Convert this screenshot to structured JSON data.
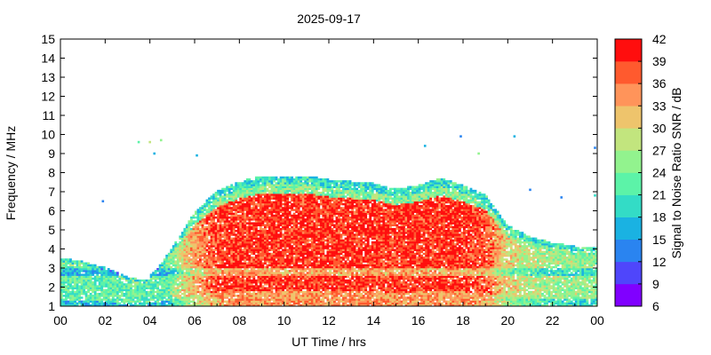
{
  "chart_data": {
    "type": "heatmap",
    "title": "2025-09-17",
    "xlabel": "UT Time / hrs",
    "ylabel": "Frequency / MHz",
    "colorbar_label": "Signal to Noise Ratio SNR / dB",
    "xlim": [
      0,
      24
    ],
    "ylim": [
      1,
      15
    ],
    "x_ticks": [
      "00",
      "02",
      "04",
      "06",
      "08",
      "10",
      "12",
      "14",
      "16",
      "18",
      "20",
      "22",
      "00"
    ],
    "y_ticks": [
      "1",
      "2",
      "3",
      "4",
      "5",
      "6",
      "7",
      "8",
      "9",
      "10",
      "11",
      "12",
      "13",
      "14",
      "15"
    ],
    "colorbar_ticks": [
      "6",
      "9",
      "12",
      "15",
      "18",
      "21",
      "24",
      "27",
      "30",
      "33",
      "36",
      "39",
      "42"
    ],
    "colorbar_range": [
      6,
      42
    ],
    "colorbar_colors": [
      "#8000ff",
      "#4f46fb",
      "#2a84f0",
      "#1ab2e2",
      "#33dcc6",
      "#5cf3a8",
      "#92f38e",
      "#c2e57e",
      "#eec46c",
      "#ff945a",
      "#ff5a2e",
      "#ff0e0e"
    ],
    "band_upper_edge_mhz": [
      {
        "t": 0,
        "f": 3.5
      },
      {
        "t": 1,
        "f": 3.3
      },
      {
        "t": 2,
        "f": 3.0
      },
      {
        "t": 3,
        "f": 2.5
      },
      {
        "t": 3.8,
        "f": 2.3
      },
      {
        "t": 4.5,
        "f": 3.2
      },
      {
        "t": 5.2,
        "f": 4.4
      },
      {
        "t": 6,
        "f": 5.9
      },
      {
        "t": 7,
        "f": 7.0
      },
      {
        "t": 8,
        "f": 7.5
      },
      {
        "t": 9,
        "f": 7.8
      },
      {
        "t": 10,
        "f": 7.8
      },
      {
        "t": 11,
        "f": 7.8
      },
      {
        "t": 12,
        "f": 7.6
      },
      {
        "t": 13,
        "f": 7.5
      },
      {
        "t": 14,
        "f": 7.4
      },
      {
        "t": 15,
        "f": 7.1
      },
      {
        "t": 16,
        "f": 7.3
      },
      {
        "t": 17,
        "f": 7.7
      },
      {
        "t": 18,
        "f": 7.3
      },
      {
        "t": 19,
        "f": 6.8
      },
      {
        "t": 20,
        "f": 5.2
      },
      {
        "t": 21,
        "f": 4.6
      },
      {
        "t": 22,
        "f": 4.3
      },
      {
        "t": 23,
        "f": 4.1
      },
      {
        "t": 24,
        "f": 4.0
      }
    ],
    "scattered_returns": [
      {
        "t": 3.5,
        "f": 9.6,
        "snr": 22
      },
      {
        "t": 4.0,
        "f": 9.6,
        "snr": 27
      },
      {
        "t": 4.5,
        "f": 9.7,
        "snr": 24
      },
      {
        "t": 4.2,
        "f": 9.0,
        "snr": 15
      },
      {
        "t": 6.1,
        "f": 8.9,
        "snr": 15
      },
      {
        "t": 1.9,
        "f": 6.5,
        "snr": 14
      },
      {
        "t": 16.3,
        "f": 9.4,
        "snr": 15
      },
      {
        "t": 17.9,
        "f": 9.9,
        "snr": 14
      },
      {
        "t": 18.7,
        "f": 9.0,
        "snr": 24
      },
      {
        "t": 20.3,
        "f": 9.9,
        "snr": 15
      },
      {
        "t": 21.0,
        "f": 7.1,
        "snr": 14
      },
      {
        "t": 22.4,
        "f": 6.7,
        "snr": 14
      },
      {
        "t": 23.9,
        "f": 9.3,
        "snr": 14
      },
      {
        "t": 23.9,
        "f": 6.8,
        "snr": 18
      }
    ]
  }
}
